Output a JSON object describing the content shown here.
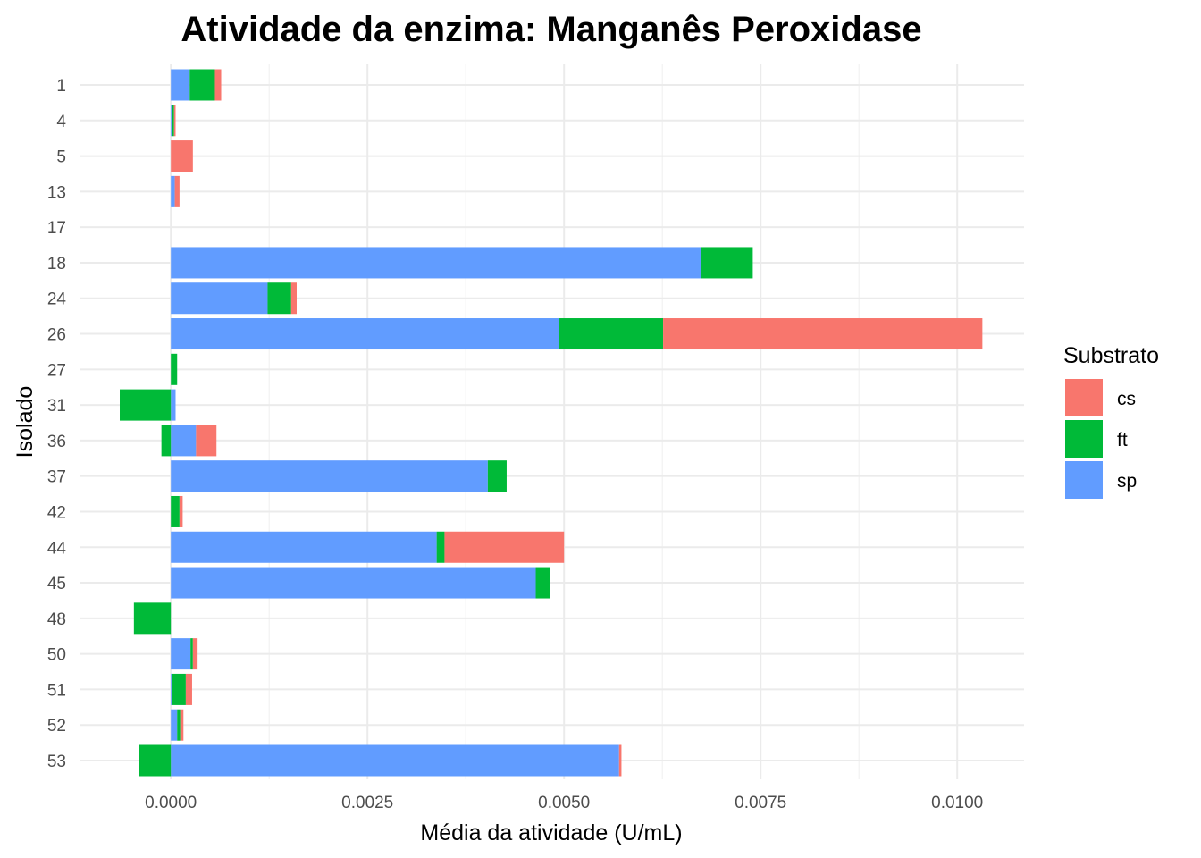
{
  "chart_data": {
    "type": "bar",
    "orientation": "horizontal",
    "stacked": true,
    "title": "Atividade da enzima: Manganês Peroxidase",
    "xlabel": "Média da atividade (U/mL)",
    "ylabel": "Isolado",
    "xlim": [
      -0.00115,
      0.01085
    ],
    "x_ticks": [
      0.0,
      0.0025,
      0.005,
      0.0075,
      0.01
    ],
    "x_tick_labels": [
      "0.0000",
      "0.0025",
      "0.0050",
      "0.0075",
      "0.0100"
    ],
    "grid": true,
    "legend": {
      "title": "Substrato",
      "position": "right",
      "entries": [
        "cs",
        "ft",
        "sp"
      ]
    },
    "categories": [
      "1",
      "4",
      "5",
      "13",
      "17",
      "18",
      "24",
      "26",
      "27",
      "31",
      "36",
      "37",
      "42",
      "44",
      "45",
      "48",
      "50",
      "51",
      "52",
      "53"
    ],
    "stack_order": [
      "sp",
      "ft",
      "cs"
    ],
    "series": [
      {
        "name": "cs",
        "color": "#F8766D",
        "values": [
          8e-05,
          2e-05,
          0.00028,
          6e-05,
          0,
          0,
          7e-05,
          0.00406,
          0,
          0,
          0.00026,
          0,
          4e-05,
          0.00152,
          0,
          0,
          6e-05,
          8e-05,
          4e-05,
          3e-05
        ]
      },
      {
        "name": "ft",
        "color": "#00BA38",
        "values": [
          0.00032,
          2e-05,
          0,
          0,
          0,
          0.00066,
          0.0003,
          0.00132,
          8e-05,
          -0.00065,
          -0.00012,
          0.00024,
          0.00011,
          0.0001,
          0.00018,
          -0.00047,
          3e-05,
          0.00017,
          4e-05,
          -0.0004
        ]
      },
      {
        "name": "sp",
        "color": "#619CFF",
        "values": [
          0.00024,
          2e-05,
          0,
          5e-05,
          0,
          0.00674,
          0.00123,
          0.00494,
          0,
          6e-05,
          0.00032,
          0.00403,
          0,
          0.00338,
          0.00464,
          0,
          0.00025,
          2e-05,
          8e-05,
          0.0057
        ]
      }
    ]
  }
}
